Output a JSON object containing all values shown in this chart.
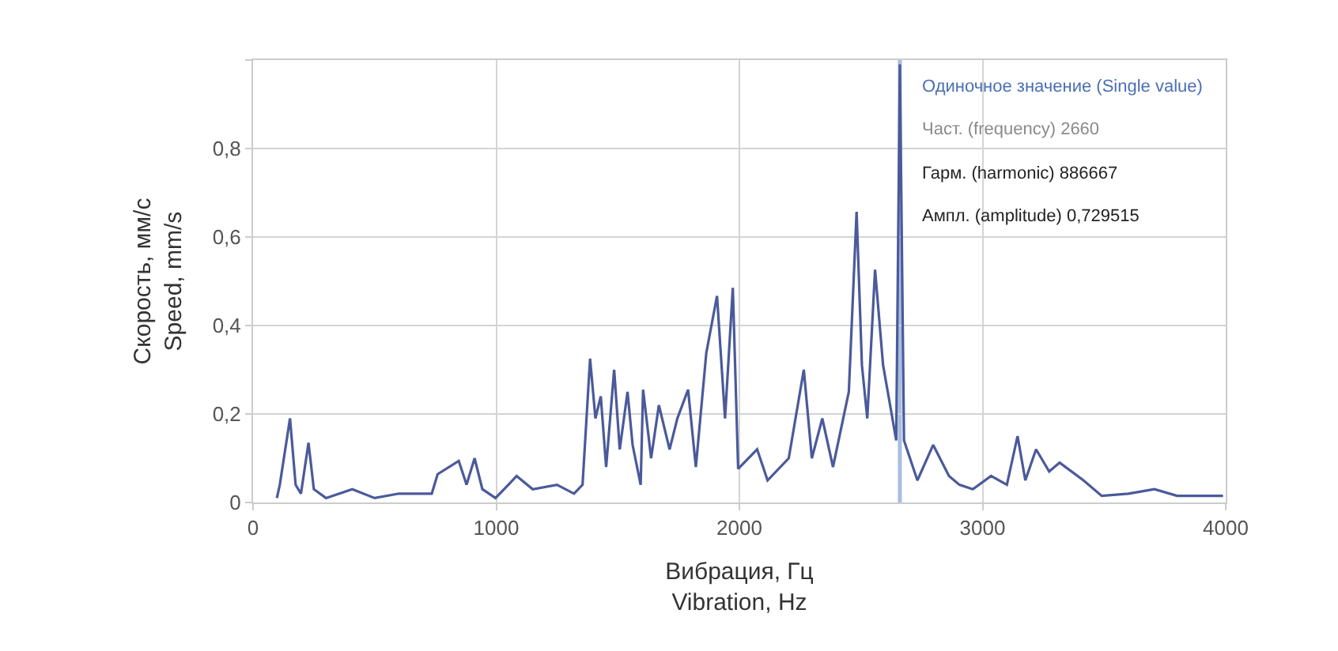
{
  "chart_data": {
    "type": "line",
    "xlabel": "Вибрация, Гц\nVibration, Hz",
    "ylabel": "Скорость, мм/с\nSpeed, mm/s",
    "x": [
      98,
      110,
      152,
      175,
      197,
      228,
      250,
      300,
      408,
      500,
      600,
      735,
      759,
      846,
      878,
      911,
      943,
      997,
      1050,
      1084,
      1150,
      1250,
      1320,
      1355,
      1386,
      1408,
      1430,
      1452,
      1485,
      1508,
      1540,
      1561,
      1594,
      1604,
      1637,
      1669,
      1713,
      1745,
      1789,
      1821,
      1864,
      1908,
      1941,
      1973,
      1995,
      2073,
      2116,
      2203,
      2265,
      2298,
      2341,
      2385,
      2450,
      2482,
      2504,
      2526,
      2558,
      2591,
      2623,
      2645,
      2660,
      2677,
      2732,
      2797,
      2862,
      2905,
      2960,
      3035,
      3100,
      3144,
      3176,
      3220,
      3274,
      3317,
      3415,
      3490,
      3600,
      3707,
      3800,
      3989
    ],
    "series": [
      {
        "color": "#4a5a9a",
        "values": [
          0.01,
          0.04,
          0.19,
          0.04,
          0.02,
          0.135,
          0.03,
          0.01,
          0.03,
          0.01,
          0.02,
          0.02,
          0.064,
          0.094,
          0.04,
          0.1,
          0.03,
          0.01,
          0.04,
          0.06,
          0.03,
          0.04,
          0.02,
          0.04,
          0.325,
          0.19,
          0.24,
          0.08,
          0.3,
          0.12,
          0.25,
          0.13,
          0.04,
          0.255,
          0.1,
          0.22,
          0.12,
          0.19,
          0.255,
          0.08,
          0.338,
          0.467,
          0.19,
          0.485,
          0.076,
          0.12,
          0.05,
          0.1,
          0.3,
          0.1,
          0.19,
          0.08,
          0.25,
          0.657,
          0.31,
          0.19,
          0.526,
          0.31,
          0.21,
          0.14,
          0.99,
          0.14,
          0.05,
          0.13,
          0.06,
          0.04,
          0.03,
          0.06,
          0.04,
          0.15,
          0.05,
          0.12,
          0.07,
          0.09,
          0.05,
          0.015,
          0.02,
          0.03,
          0.015,
          0.015
        ]
      }
    ],
    "xlim": [
      0,
      4000
    ],
    "xticks": [
      0,
      1000,
      2000,
      3000,
      4000
    ],
    "ylim": [
      0,
      1
    ],
    "yticks": [
      0,
      {
        "value": 0.2,
        "label": "0,2"
      },
      {
        "value": 0.4,
        "label": "0,4"
      },
      {
        "value": 0.6,
        "label": "0,6"
      },
      {
        "value": 0.8,
        "label": "0,8"
      },
      {
        "value": 1,
        "label": null
      }
    ],
    "ref_lines": [
      {
        "axis": "x",
        "value": 2660,
        "label": null,
        "color": "#a8bde0"
      }
    ],
    "annotations": [
      "Одиночное значение (Single value)",
      "Част. (frequency) 2660",
      "Гарм. (harmonic) 886667",
      "Ампл. (amplitude) 0,729515"
    ],
    "grid": true,
    "marker": "none",
    "line_style": "solid"
  }
}
